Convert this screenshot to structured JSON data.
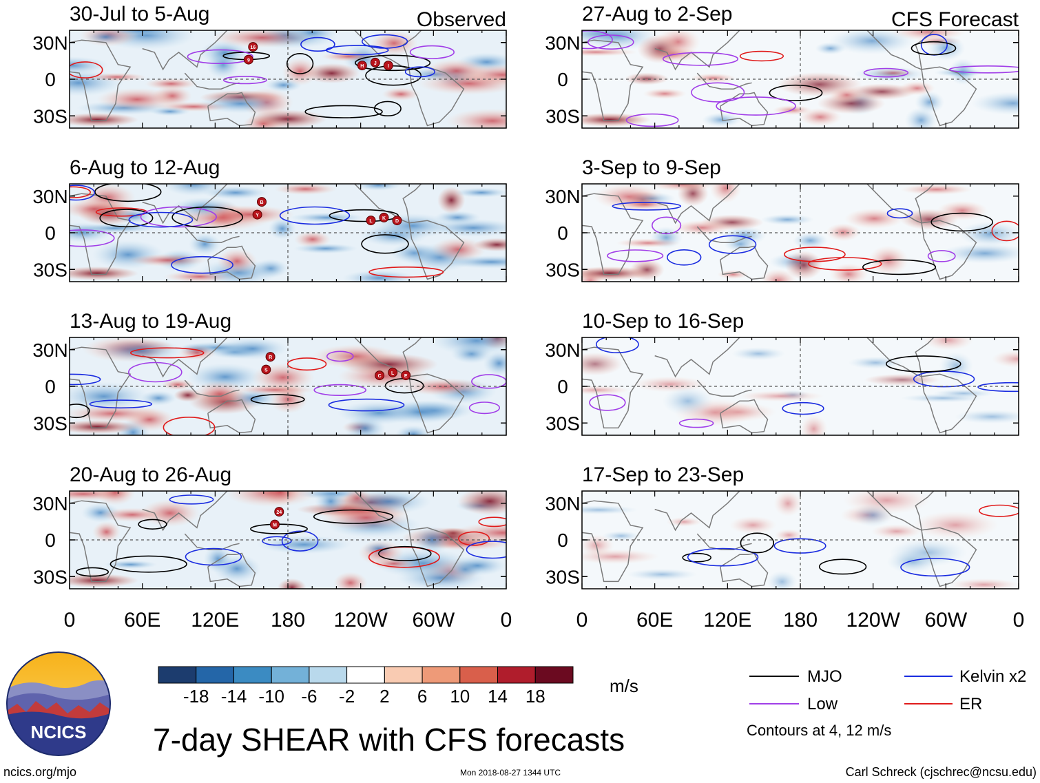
{
  "chart_data": {
    "type": "heatmap",
    "title": "7-day SHEAR with CFS forecasts",
    "variable": "SHEAR",
    "units": "m/s",
    "columns": {
      "observed_label": "Observed",
      "forecast_label": "CFS Forecast"
    },
    "observed_panels": [
      {
        "label": "30-Jul to 5-Aug",
        "storms": [
          "16",
          "9",
          "H",
          "J",
          "I"
        ]
      },
      {
        "label": "6-Aug to 12-Aug",
        "storms": [
          "B",
          "Y",
          "L",
          "K",
          "D"
        ]
      },
      {
        "label": "13-Aug to 19-Aug",
        "storms": [
          "R",
          "S",
          "C",
          "L",
          "E"
        ]
      },
      {
        "label": "20-Aug to 26-Aug",
        "storms": [
          "24",
          "M"
        ]
      }
    ],
    "forecast_panels": [
      {
        "label": "27-Aug to 2-Sep"
      },
      {
        "label": "3-Sep to 9-Sep"
      },
      {
        "label": "10-Sep to 16-Sep"
      },
      {
        "label": "17-Sep to 23-Sep"
      }
    ],
    "y_axis": {
      "ticks": [
        "30N",
        "0",
        "30S"
      ],
      "values": [
        30,
        0,
        -30
      ],
      "range": [
        -40,
        40
      ]
    },
    "x_axis": {
      "ticks": [
        "0",
        "60E",
        "120E",
        "180",
        "120W",
        "60W",
        "0"
      ],
      "values": [
        0,
        60,
        120,
        180,
        240,
        300,
        360
      ],
      "range": [
        0,
        360
      ]
    },
    "colorbar": {
      "labels": [
        "-18",
        "-14",
        "-10",
        "-6",
        "-2",
        "2",
        "6",
        "10",
        "14",
        "18"
      ],
      "levels": [
        -18,
        -14,
        -10,
        -6,
        -2,
        2,
        6,
        10,
        14,
        18
      ],
      "colors": [
        "#1c3c6e",
        "#2466a8",
        "#3b8bc2",
        "#73b1d8",
        "#b9d9ec",
        "#ffffff",
        "#f9cbb2",
        "#ee9a78",
        "#d95f4b",
        "#b01d2c",
        "#6b0a20"
      ]
    },
    "legend": [
      {
        "label": "MJO",
        "color": "#000000"
      },
      {
        "label": "Kelvin x2",
        "color": "#1a2ce0"
      },
      {
        "label": "Low",
        "color": "#a13ee8"
      },
      {
        "label": "ER",
        "color": "#e01a1a"
      }
    ],
    "contour_note": "Contours at 4, 12 m/s"
  },
  "branding": {
    "logo_text": "NCICS",
    "site": "ncics.org/mjo",
    "timestamp": "Mon 2018-08-27 1344 UTC",
    "credit": "Carl Schreck (cjschrec@ncsu.edu)"
  }
}
